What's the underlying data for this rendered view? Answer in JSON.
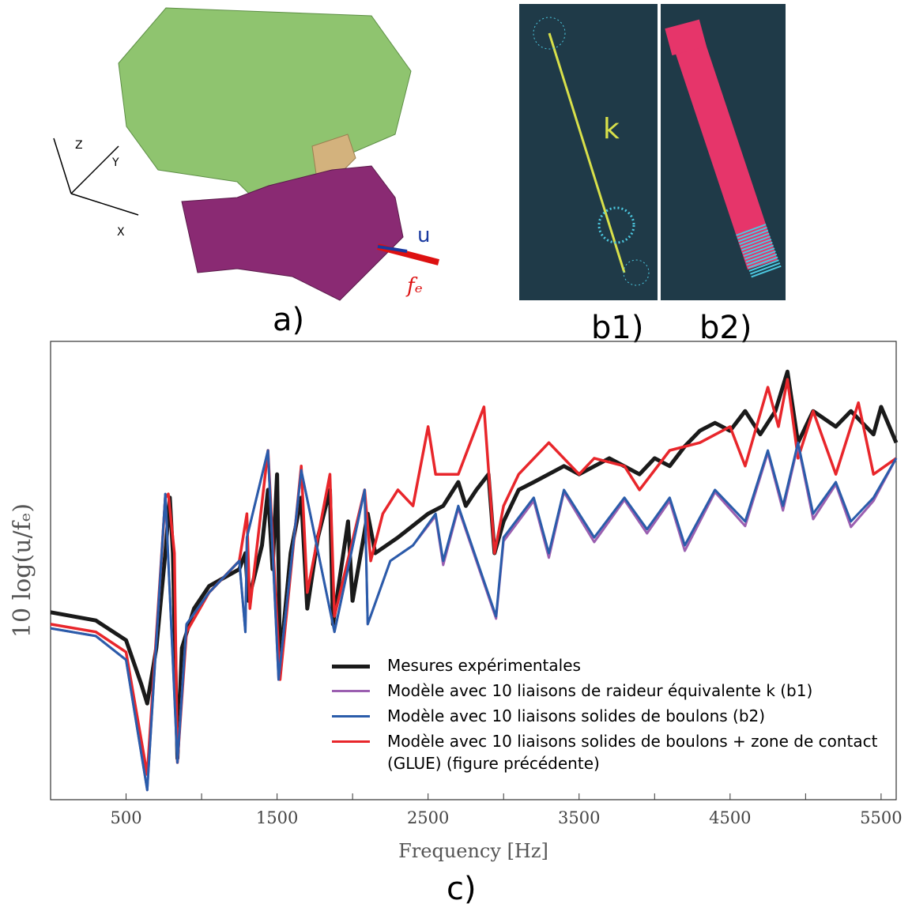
{
  "figure_labels": {
    "a": "a)",
    "b1": "b1)",
    "b2": "b2)",
    "c": "c)"
  },
  "images": {
    "axis_z": "Z",
    "axis_y": "Y",
    "axis_x": "X",
    "spring": "k",
    "displacement": "u",
    "force": "fₑ"
  },
  "chart_data": {
    "type": "line",
    "xlabel": "Frequency [Hz]",
    "ylabel": "10 log(u/fₑ)",
    "xlim": [
      0,
      5600
    ],
    "ylim": [
      0,
      100
    ],
    "xticks": [
      500,
      1500,
      2500,
      3500,
      4500,
      5500
    ],
    "xminorticks": [
      1000,
      2000,
      3000,
      4000,
      5000
    ],
    "legend": "lower right",
    "series": [
      {
        "name": "Mesures expérimentales",
        "color": "#1a1a1a",
        "width": 5,
        "x": [
          0,
          300,
          500,
          600,
          640,
          700,
          760,
          790,
          810,
          840,
          870,
          950,
          1050,
          1250,
          1290,
          1310,
          1400,
          1440,
          1470,
          1500,
          1520,
          1590,
          1660,
          1700,
          1770,
          1850,
          1870,
          1970,
          2000,
          2100,
          2150,
          2300,
          2500,
          2600,
          2700,
          2750,
          2820,
          2900,
          2940,
          3000,
          3100,
          3200,
          3400,
          3500,
          3700,
          3900,
          4000,
          4100,
          4200,
          4300,
          4400,
          4500,
          4600,
          4700,
          4800,
          4880,
          4950,
          5050,
          5200,
          5300,
          5450,
          5500,
          5600
        ],
        "values": [
          40.9,
          39.1,
          34.8,
          25.3,
          21.0,
          33.1,
          53.8,
          65.9,
          53.8,
          9.0,
          33.1,
          41.7,
          46.6,
          50.3,
          53.8,
          43.4,
          55.5,
          67.6,
          50.3,
          71.0,
          29.7,
          53.8,
          65.9,
          41.7,
          57.2,
          67.6,
          38.3,
          60.7,
          43.4,
          62.4,
          53.8,
          57.2,
          62.4,
          64.1,
          69.3,
          64.1,
          67.6,
          71.0,
          53.8,
          60.7,
          67.6,
          69.3,
          72.8,
          71.0,
          74.5,
          71.0,
          74.5,
          72.8,
          77.1,
          80.5,
          82.2,
          80.5,
          84.8,
          79.7,
          84.8,
          93.4,
          77.9,
          84.8,
          81.4,
          84.8,
          79.7,
          85.7,
          77.9
        ]
      },
      {
        "name": "Modèle avec 10 liaisons solides de boulons  + zone de contact (GLUE) (figure précédente)",
        "color": "#e8262b",
        "width": 3.5,
        "x": [
          0,
          300,
          500,
          640,
          760,
          780,
          820,
          840,
          900,
          1050,
          1250,
          1300,
          1320,
          1440,
          1520,
          1660,
          1700,
          1850,
          1880,
          2080,
          2120,
          2200,
          2300,
          2400,
          2500,
          2550,
          2700,
          2870,
          2940,
          3000,
          3100,
          3300,
          3500,
          3600,
          3800,
          3900,
          4100,
          4300,
          4500,
          4600,
          4750,
          4820,
          4880,
          4950,
          5050,
          5200,
          5350,
          5450,
          5600
        ],
        "values": [
          38.3,
          36.6,
          32.2,
          5.5,
          65.9,
          66.7,
          53.8,
          8.1,
          36.6,
          45.2,
          52.1,
          62.4,
          41.7,
          76.2,
          26.2,
          72.8,
          45.2,
          71.0,
          40.0,
          67.6,
          52.1,
          62.4,
          67.6,
          64.1,
          81.4,
          71.0,
          71.0,
          85.7,
          53.8,
          64.1,
          71.0,
          77.9,
          71.0,
          74.5,
          72.8,
          67.6,
          76.2,
          77.9,
          81.4,
          72.8,
          90.0,
          81.4,
          91.7,
          74.5,
          84.8,
          71.0,
          86.6,
          71.0,
          74.5
        ]
      },
      {
        "name": "Modèle avec 10 liaisons de raideur équivalente k (b1)",
        "color": "#9b5fb0",
        "width": 3,
        "x": [
          0,
          300,
          500,
          640,
          760,
          840,
          900,
          1050,
          1250,
          1290,
          1300,
          1440,
          1510,
          1660,
          1880,
          2080,
          2100,
          2250,
          2400,
          2550,
          2600,
          2700,
          2950,
          3000,
          3200,
          3300,
          3400,
          3600,
          3800,
          3950,
          4100,
          4200,
          4400,
          4600,
          4750,
          4850,
          4950,
          5050,
          5200,
          5300,
          5450,
          5600
        ],
        "values": [
          37.4,
          35.7,
          30.5,
          2.1,
          66.7,
          8.1,
          38.3,
          45.2,
          52.1,
          36.6,
          57.2,
          76.2,
          26.2,
          71.9,
          36.6,
          67.6,
          38.3,
          52.1,
          55.5,
          61.9,
          51.2,
          63.6,
          39.5,
          56.4,
          65.2,
          52.8,
          67.1,
          56.2,
          65.4,
          58.1,
          65.2,
          54.3,
          67.1,
          59.7,
          75.7,
          63.1,
          77.4,
          61.2,
          68.8,
          59.5,
          65.2,
          74.5
        ]
      },
      {
        "name": "Modèle avec 10 liaisons solides de boulons (b2)",
        "color": "#2a5caa",
        "width": 3,
        "x": [
          0,
          300,
          500,
          640,
          760,
          840,
          900,
          1050,
          1250,
          1290,
          1300,
          1440,
          1510,
          1660,
          1880,
          2080,
          2100,
          2250,
          2400,
          2550,
          2600,
          2700,
          2950,
          3000,
          3200,
          3300,
          3400,
          3600,
          3800,
          3950,
          4100,
          4200,
          4400,
          4600,
          4750,
          4850,
          4950,
          5050,
          5200,
          5300,
          5450,
          5600
        ],
        "values": [
          37.4,
          35.7,
          30.5,
          2.1,
          66.7,
          8.1,
          38.3,
          45.2,
          52.1,
          36.6,
          57.2,
          76.2,
          26.2,
          71.9,
          36.6,
          67.6,
          38.3,
          52.1,
          55.5,
          62.4,
          52.1,
          64.1,
          40.0,
          57.2,
          65.9,
          53.8,
          67.6,
          57.2,
          65.9,
          59.0,
          65.9,
          55.5,
          67.6,
          60.7,
          76.2,
          64.1,
          77.9,
          62.4,
          69.3,
          60.7,
          65.9,
          74.5
        ]
      }
    ]
  }
}
